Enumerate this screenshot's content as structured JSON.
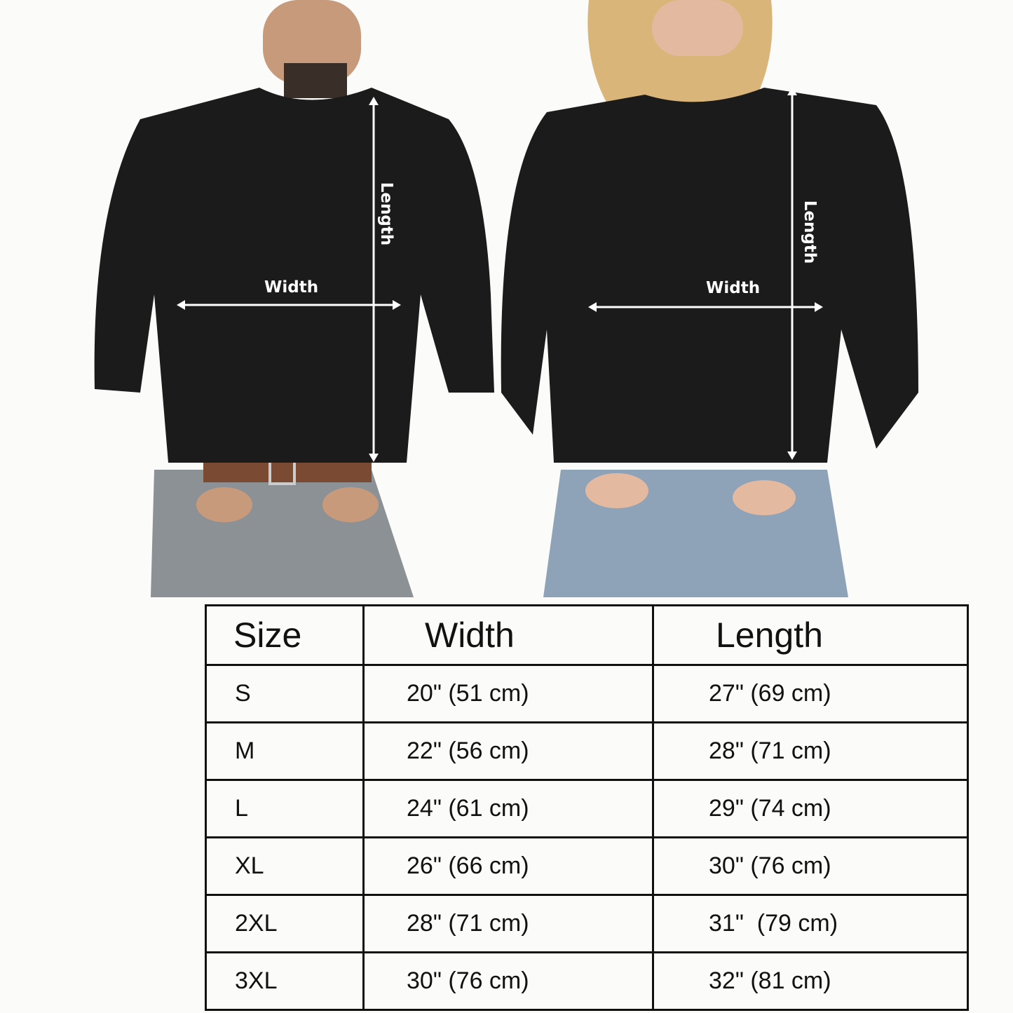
{
  "measurements": {
    "left_model": {
      "length_label": "Length",
      "width_label": "Width"
    },
    "right_model": {
      "length_label": "Length",
      "width_label": "Width"
    }
  },
  "colors": {
    "sweatshirt": "#1b1b1b",
    "jeans_left": "#8c9196",
    "jeans_right": "#8fa3b8",
    "arrow": "#ffffff",
    "table_border": "#111111"
  },
  "size_table": {
    "headers": [
      "Size",
      "Width",
      "Length"
    ],
    "rows": [
      {
        "size": "S",
        "width": "20\" (51 cm)",
        "length": "27\" (69 cm)"
      },
      {
        "size": "M",
        "width": "22\" (56 cm)",
        "length": "28\" (71 cm)"
      },
      {
        "size": "L",
        "width": "24\" (61 cm)",
        "length": "29\" (74 cm)"
      },
      {
        "size": "XL",
        "width": "26\" (66 cm)",
        "length": "30\" (76 cm)"
      },
      {
        "size": "2XL",
        "width": "28\" (71 cm)",
        "length": "31\"  (79 cm)"
      },
      {
        "size": "3XL",
        "width": "30\" (76 cm)",
        "length": "32\" (81 cm)"
      }
    ]
  }
}
